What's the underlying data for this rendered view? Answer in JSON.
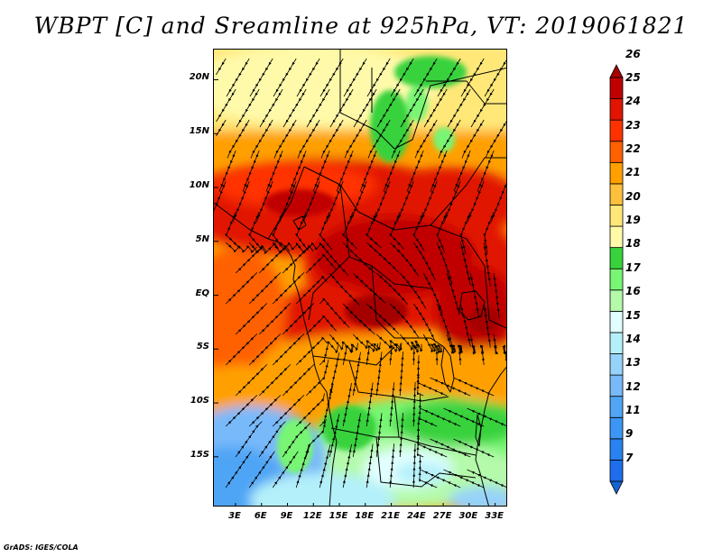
{
  "title": "WBPT [C] and Sreamline at 925hPa, VT: 2019061821",
  "credit": "GrADS: IGES/COLA",
  "map": {
    "lat_labels": [
      "20N",
      "15N",
      "10N",
      "5N",
      "EQ",
      "5S",
      "10S",
      "15S"
    ],
    "lon_labels": [
      "3E",
      "6E",
      "9E",
      "12E",
      "15E",
      "18E",
      "21E",
      "24E",
      "27E",
      "30E",
      "33E"
    ],
    "lat_values": [
      20,
      15,
      10,
      5,
      0,
      -5,
      -10,
      -15
    ],
    "lon_values": [
      3,
      6,
      9,
      12,
      15,
      18,
      21,
      24,
      27,
      30,
      33
    ],
    "lon_range": [
      0.5,
      34.5
    ],
    "lat_range": [
      -19.7,
      22.8
    ],
    "layers": [
      "shaded wet-bulb potential temperature",
      "streamlines",
      "coastlines and country borders"
    ]
  },
  "colorbar": {
    "levels": [
      "7",
      "9",
      "11",
      "12",
      "13",
      "14",
      "15",
      "16",
      "17",
      "18",
      "19",
      "20",
      "21",
      "22",
      "23",
      "24",
      "25",
      "26"
    ],
    "colors": [
      "#1464d2",
      "#1e6eeb",
      "#2882f0",
      "#3c96f5",
      "#50a5f5",
      "#78b9fa",
      "#96d2fa",
      "#b4f0fa",
      "#e1ffff",
      "#b4faaa",
      "#78f573",
      "#37d23c",
      "#fffaaa",
      "#ffe878",
      "#ffc03c",
      "#ffa000",
      "#ff6000",
      "#ff3200",
      "#e11400",
      "#c00000",
      "#a50000"
    ]
  }
}
